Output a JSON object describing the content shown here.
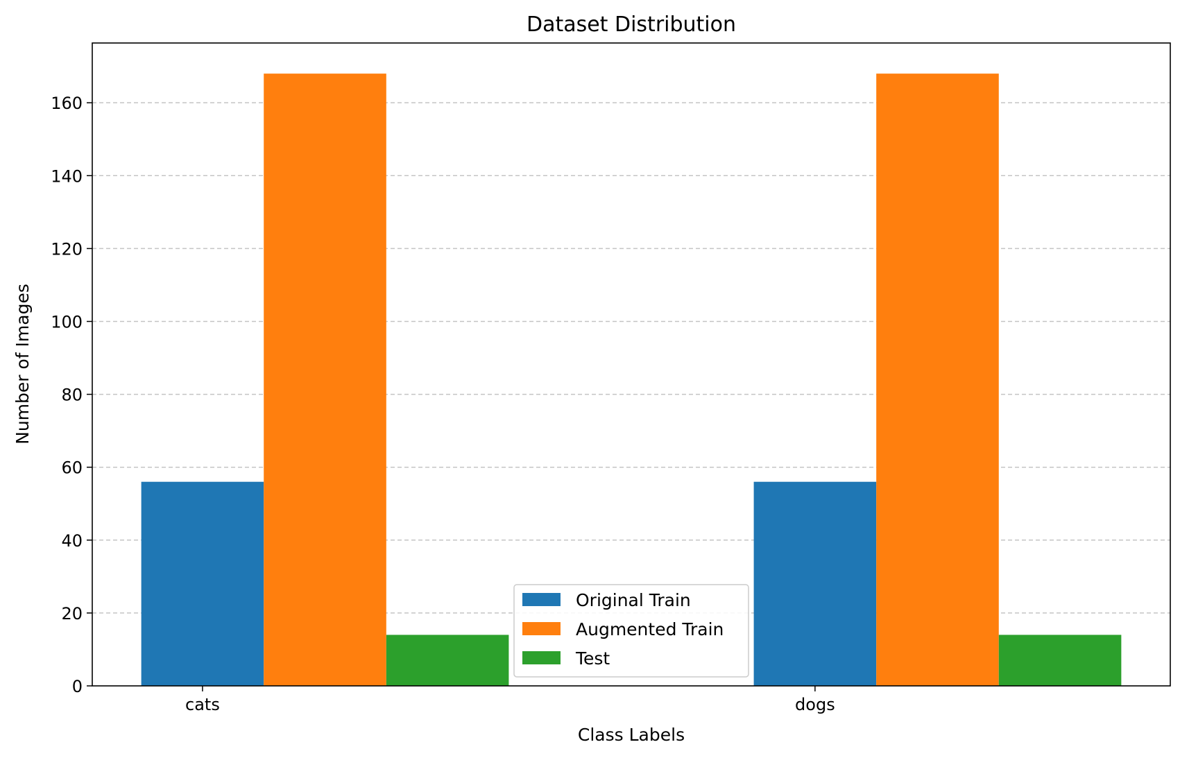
{
  "chart_data": {
    "type": "bar",
    "title": "Dataset Distribution",
    "xlabel": "Class Labels",
    "ylabel": "Number of Images",
    "categories": [
      "cats",
      "dogs"
    ],
    "series": [
      {
        "name": "Original Train",
        "values": [
          56,
          56
        ],
        "color": "#1f77b4"
      },
      {
        "name": "Augmented Train",
        "values": [
          168,
          168
        ],
        "color": "#ff7f0e"
      },
      {
        "name": "Test",
        "values": [
          14,
          14
        ],
        "color": "#2ca02c"
      }
    ],
    "ylim": [
      0,
      176.4
    ],
    "yticks": [
      0,
      20,
      40,
      60,
      80,
      100,
      120,
      140,
      160
    ],
    "grid": "y-dashed",
    "legend_position": "bottom-center"
  }
}
